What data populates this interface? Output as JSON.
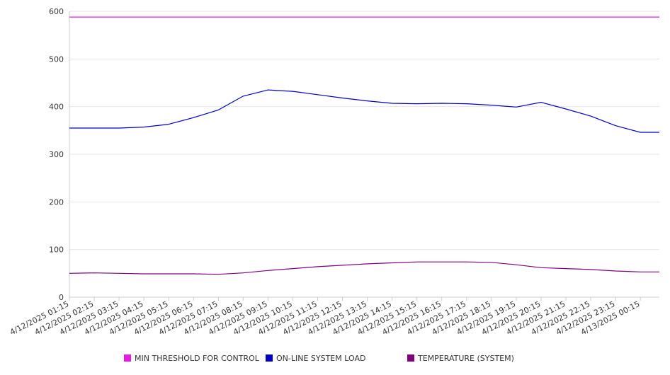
{
  "chart_data": {
    "type": "line",
    "title": "",
    "xlabel": "",
    "ylabel": "",
    "ylim": [
      0,
      600
    ],
    "y_ticks": [
      "0",
      "100",
      "200",
      "300",
      "400",
      "500",
      "600"
    ],
    "x": [
      "4/12/2025 01:15",
      "4/12/2025 02:15",
      "4/12/2025 03:15",
      "4/12/2025 04:15",
      "4/12/2025 05:15",
      "4/12/2025 06:15",
      "4/12/2025 07:15",
      "4/12/2025 08:15",
      "4/12/2025 09:15",
      "4/12/2025 10:15",
      "4/12/2025 11:15",
      "4/12/2025 12:15",
      "4/12/2025 13:15",
      "4/12/2025 14:15",
      "4/12/2025 15:15",
      "4/12/2025 16:15",
      "4/12/2025 17:15",
      "4/12/2025 18:15",
      "4/12/2025 19:15",
      "4/12/2025 20:15",
      "4/12/2025 21:15",
      "4/12/2025 22:15",
      "4/12/2025 23:15",
      "4/13/2025 00:15"
    ],
    "grid": true,
    "legend_position": "bottom",
    "series": [
      {
        "name": "MIN THRESHOLD FOR CONTROL",
        "color": "#e619e6",
        "values": [
          588,
          588,
          588,
          588,
          588,
          588,
          588,
          588,
          588,
          588,
          588,
          588,
          588,
          588,
          588,
          588,
          588,
          588,
          588,
          588,
          588,
          588,
          588,
          588
        ]
      },
      {
        "name": "ON-LINE SYSTEM LOAD",
        "color": "#0000cc",
        "values": [
          355,
          355,
          355,
          357,
          363,
          377,
          393,
          422,
          435,
          432,
          425,
          418,
          412,
          407,
          406,
          407,
          406,
          403,
          399,
          409,
          395,
          380,
          360,
          346
        ]
      },
      {
        "name": "TEMPERATURE (SYSTEM)",
        "color": "#800080",
        "values": [
          50,
          51,
          50,
          49,
          49,
          49,
          48,
          51,
          56,
          60,
          64,
          67,
          70,
          72,
          74,
          74,
          74,
          73,
          68,
          62,
          60,
          58,
          55,
          53
        ]
      }
    ]
  }
}
